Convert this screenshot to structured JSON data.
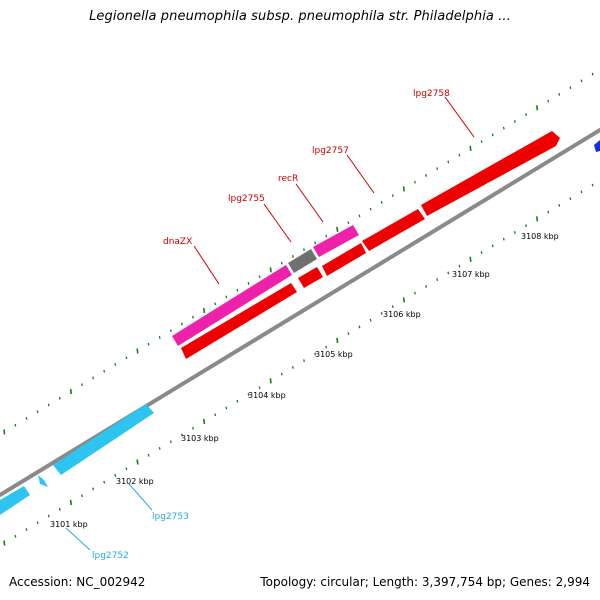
{
  "title": "Legionella pneumophila subsp. pneumophila str. Philadelphia ...",
  "footer": {
    "accession": "Accession: NC_002942",
    "summary": "Topology: circular; Length: 3,397,754 bp; Genes: 2,994"
  },
  "colors": {
    "backbone": "#8a8a8a",
    "tick": "#1a7a1a",
    "cyan_gene": "#2ec4f0",
    "red_gene": "#ee0000",
    "pink_gene": "#ee22aa",
    "gray_gene": "#707070",
    "blue_gene": "#1030e0",
    "label_red": "#cc0000",
    "label_cyan": "#22aadd"
  },
  "ticks": [
    {
      "label": "3101 kbp"
    },
    {
      "label": "3102 kbp"
    },
    {
      "label": "3103 kbp"
    },
    {
      "label": "3104 kbp"
    },
    {
      "label": "3105 kbp"
    },
    {
      "label": "3106 kbp"
    },
    {
      "label": "3107 kbp"
    },
    {
      "label": "3108 kbp"
    }
  ],
  "gene_labels": [
    {
      "name": "lpg2758",
      "color": "label_red"
    },
    {
      "name": "lpg2757",
      "color": "label_red"
    },
    {
      "name": "recR",
      "color": "label_red"
    },
    {
      "name": "lpg2755",
      "color": "label_red"
    },
    {
      "name": "dnaZX",
      "color": "label_red"
    },
    {
      "name": "lpg2753",
      "color": "label_cyan"
    },
    {
      "name": "lpg2752",
      "color": "label_cyan"
    }
  ]
}
